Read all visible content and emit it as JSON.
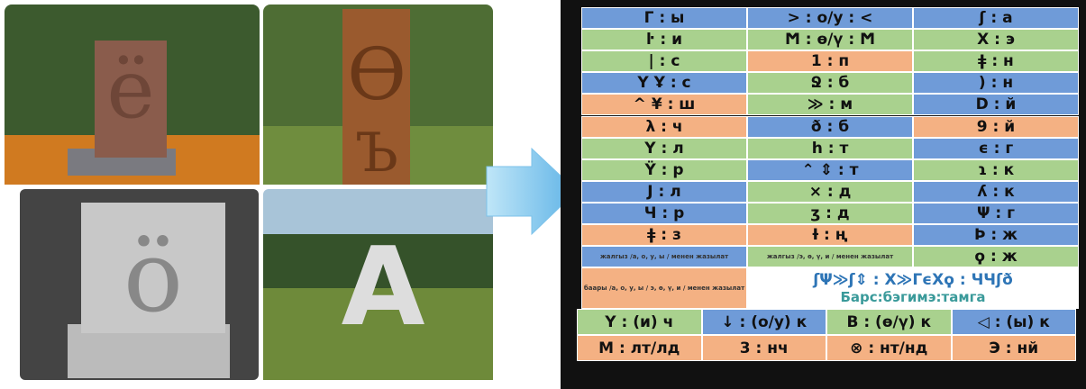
{
  "photos": [
    {
      "letters": [
        "ё"
      ]
    },
    {
      "letters": [
        "Ѳ",
        "Ъ"
      ]
    },
    {
      "letters": [
        "ö"
      ]
    },
    {
      "letters": [
        "A"
      ]
    }
  ],
  "table": {
    "rows": [
      [
        "Γ : ы",
        "> : о/у : <",
        "ʃ : а"
      ],
      [
        "ŀ : и",
        "Ϻ : ө/ү : Ϻ",
        "X : э"
      ],
      [
        "| : с",
        "1 : п",
        "ǂ : н"
      ],
      [
        "Y  Ұ : с",
        "Ջ : б",
        ") : н"
      ],
      [
        "^  ¥ : ш",
        "≫ : м",
        "D : й"
      ],
      [
        "λ : ч",
        "ð : б",
        "9 : й"
      ],
      [
        "Y : л",
        "h : т",
        "ϵ : г"
      ],
      [
        "Ϋ : р",
        "⌃ ⇕ : т",
        "ɿ : к"
      ],
      [
        "J : л",
        "× : д",
        "ʎ : к"
      ],
      [
        "Ч : р",
        "ʒ : д",
        "Ψ : г"
      ],
      [
        "ǂ : з",
        "Ɨ : ң",
        "Þ : ж"
      ],
      [
        "жалгыз /а, о, у, ы / менен жазылат",
        "жалгыз /э, ө, ү, и / менен жазылат",
        "ϙ : ж"
      ]
    ],
    "note_wide": "баары /а, о, у, ы / э, ө, ү, и / менен жазылат",
    "runes": "ʃΨ≫ʃ⇕ : X≫ΓϵXϙ : ЧЧʃð",
    "phrase": "Барс:бэгимэ:тамга",
    "bottom_rows": [
      [
        "Y : (и) ч",
        "↓ : (о/у) к",
        "B : (ө/ү) к",
        "◁ : (ы) к"
      ],
      [
        "M : лт/лд",
        "3 : нч",
        "⊗ : нт/нд",
        "Э : нй"
      ]
    ]
  }
}
